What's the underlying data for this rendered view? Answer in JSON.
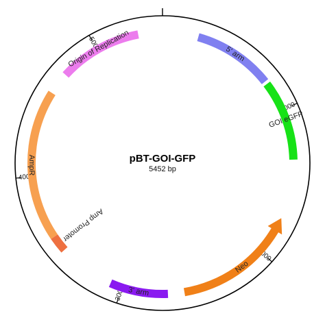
{
  "plasmid": {
    "name": "pBT-GOI-GFP",
    "size_label": "5452 bp",
    "length_bp": 5452
  },
  "ticks": [
    {
      "bp": 1000,
      "label": "1000"
    },
    {
      "bp": 2000,
      "label": "2000"
    },
    {
      "bp": 3000,
      "label": "3000"
    },
    {
      "bp": 4000,
      "label": "4000"
    },
    {
      "bp": 5000,
      "label": "5000"
    }
  ],
  "features": [
    {
      "key": "five-arm",
      "label": "5' arm",
      "color": "#8080f0",
      "start_bp": 240,
      "end_bp": 780,
      "arrow": false,
      "label_mode": "inside"
    },
    {
      "key": "goi-egfp",
      "label": "GOI eGFP",
      "color": "#17e217",
      "start_bp": 800,
      "end_bp": 1340,
      "arrow": false,
      "label_mode": "inside"
    },
    {
      "key": "neo",
      "label": "Neo",
      "color": "#f08018",
      "start_bp": 1740,
      "end_bp": 2580,
      "arrow": true,
      "direction": "ccw",
      "label_mode": "inside"
    },
    {
      "key": "three-arm",
      "label": "3' arm",
      "color": "#8a1af0",
      "start_bp": 2690,
      "end_bp": 3080,
      "arrow": false,
      "label_mode": "inside"
    },
    {
      "key": "amp-promoter",
      "label": "Amp Promoter",
      "color": "#ee7040",
      "start_bp": 3460,
      "end_bp": 3570,
      "arrow": false,
      "label_mode": "outside"
    },
    {
      "key": "ampr",
      "label": "AmpR",
      "color": "#f7a050",
      "start_bp": 3570,
      "end_bp": 4580,
      "arrow": false,
      "label_mode": "inside"
    },
    {
      "key": "origin",
      "label": "Origin of Replication",
      "color": "#ec7ced",
      "start_bp": 4730,
      "end_bp": 5290,
      "arrow": false,
      "label_mode": "inside"
    }
  ]
}
